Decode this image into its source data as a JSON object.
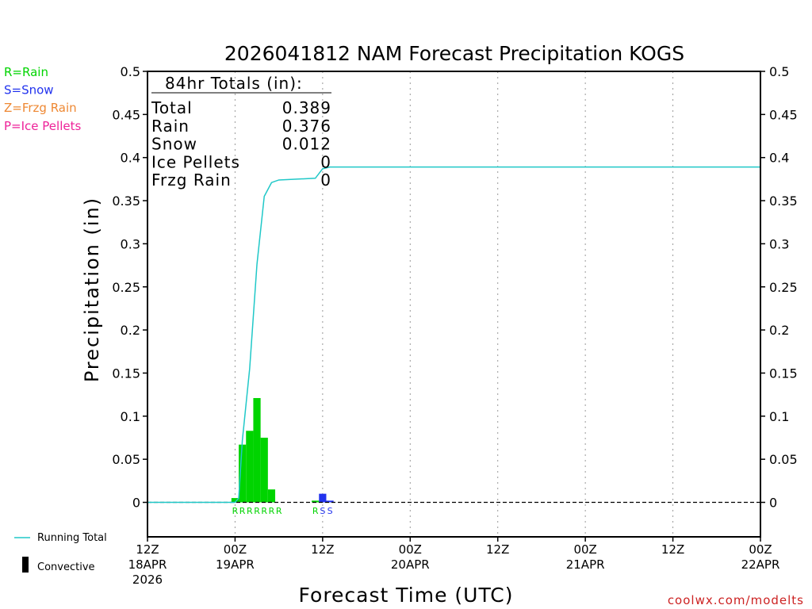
{
  "chart_data": {
    "type": "bar",
    "title": "2026041812 NAM Forecast Precipitation KOGS",
    "ylabel": "Precipitation (in)",
    "xlabel": "Forecast Time (UTC)",
    "ylim": [
      -0.04,
      0.5
    ],
    "xlim_hours": [
      0,
      84
    ],
    "y_ticks": [
      0,
      0.05,
      0.1,
      0.15,
      0.2,
      0.25,
      0.3,
      0.35,
      0.4,
      0.45,
      0.5
    ],
    "y_tick_labels": [
      "0",
      "0.05",
      "0.1",
      "0.15",
      "0.2",
      "0.25",
      "0.3",
      "0.35",
      "0.4",
      "0.45",
      "0.5"
    ],
    "x_ticks": [
      {
        "hour": 0,
        "lines": [
          "12Z",
          "18APR",
          "2026"
        ]
      },
      {
        "hour": 12,
        "lines": [
          "00Z",
          "19APR"
        ]
      },
      {
        "hour": 24,
        "lines": [
          "12Z"
        ]
      },
      {
        "hour": 36,
        "lines": [
          "00Z",
          "20APR"
        ]
      },
      {
        "hour": 48,
        "lines": [
          "12Z"
        ]
      },
      {
        "hour": 60,
        "lines": [
          "00Z",
          "21APR"
        ]
      },
      {
        "hour": 72,
        "lines": [
          "12Z"
        ]
      },
      {
        "hour": 84,
        "lines": [
          "00Z",
          "22APR"
        ]
      }
    ],
    "bar_width_hours": 1,
    "bars": [
      {
        "hour": 12,
        "value": 0.005,
        "ptype": "rain"
      },
      {
        "hour": 13,
        "value": 0.067,
        "ptype": "rain"
      },
      {
        "hour": 14,
        "value": 0.083,
        "ptype": "rain"
      },
      {
        "hour": 15,
        "value": 0.121,
        "ptype": "rain"
      },
      {
        "hour": 16,
        "value": 0.075,
        "ptype": "rain"
      },
      {
        "hour": 17,
        "value": 0.015,
        "ptype": "rain"
      },
      {
        "hour": 23,
        "value": 0.002,
        "ptype": "rain"
      },
      {
        "hour": 24,
        "value": 0.01,
        "ptype": "snow"
      },
      {
        "hour": 25,
        "value": 0.002,
        "ptype": "snow"
      }
    ],
    "running_total": {
      "name": "Running Total",
      "hours": [
        0,
        12,
        12.5,
        13,
        14,
        15,
        16,
        17,
        18,
        23,
        24,
        25,
        84
      ],
      "values": [
        0,
        0,
        0.005,
        0.072,
        0.155,
        0.276,
        0.355,
        0.371,
        0.374,
        0.376,
        0.387,
        0.389,
        0.389
      ]
    },
    "ptype_markers": [
      {
        "hour": 12,
        "text": "R",
        "ptype": "rain"
      },
      {
        "hour": 13,
        "text": "R",
        "ptype": "rain"
      },
      {
        "hour": 14,
        "text": "R",
        "ptype": "rain"
      },
      {
        "hour": 15,
        "text": "R",
        "ptype": "rain"
      },
      {
        "hour": 16,
        "text": "R",
        "ptype": "rain"
      },
      {
        "hour": 17,
        "text": "R",
        "ptype": "rain"
      },
      {
        "hour": 18,
        "text": "R",
        "ptype": "rain"
      },
      {
        "hour": 23,
        "text": "R",
        "ptype": "rain"
      },
      {
        "hour": 24,
        "text": "S",
        "ptype": "snow"
      },
      {
        "hour": 25,
        "text": "S",
        "ptype": "snow"
      }
    ],
    "totals_box": {
      "header": "84hr Totals (in):",
      "rows": [
        {
          "label": "Total",
          "value": "0.389"
        },
        {
          "label": "Rain",
          "value": "0.376"
        },
        {
          "label": "Snow",
          "value": "0.012"
        },
        {
          "label": "Ice Pellets",
          "value": "0"
        },
        {
          "label": "Frzg Rain",
          "value": "0"
        }
      ]
    },
    "ptype_legend": [
      {
        "text": "R=Rain",
        "ptype": "rain"
      },
      {
        "text": "S=Snow",
        "ptype": "snow"
      },
      {
        "text": "Z=Frzg Rain",
        "ptype": "frzg"
      },
      {
        "text": "P=Ice Pellets",
        "ptype": "ice"
      }
    ],
    "legend": {
      "running_total": "Running Total",
      "convective": "Convective"
    },
    "credit": "coolwx.com/modelts",
    "colors": {
      "rain": "#00d400",
      "snow": "#2233ee",
      "frzg": "#ee8833",
      "ice": "#ee2299",
      "running_total": "#20c8c8",
      "convective": "#000000",
      "credit": "#cc2222",
      "grid": "#999999"
    }
  }
}
